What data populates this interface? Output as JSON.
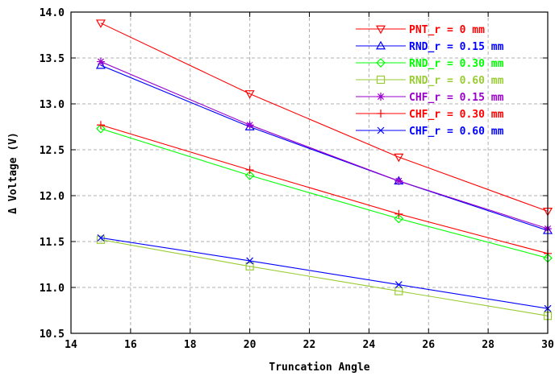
{
  "chart_data": {
    "type": "line",
    "title": "",
    "xlabel": "Truncation Angle",
    "ylabel": "Δ Voltage (V)",
    "xlim": [
      14,
      30
    ],
    "ylim": [
      10.5,
      14.0
    ],
    "xticks": [
      14,
      16,
      18,
      20,
      22,
      24,
      26,
      28,
      30
    ],
    "yticks": [
      10.5,
      11.0,
      11.5,
      12.0,
      12.5,
      13.0,
      13.5,
      14.0
    ],
    "xtick_labels": [
      "14",
      "16",
      "18",
      "20",
      "22",
      "24",
      "26",
      "28",
      "30"
    ],
    "ytick_labels": [
      "10.5",
      "11.0",
      "11.5",
      "12.0",
      "12.5",
      "13.0",
      "13.5",
      "14.0"
    ],
    "grid": true,
    "legend_position": "top-right",
    "x": [
      15,
      20,
      25,
      30
    ],
    "series": [
      {
        "name": "PNT_r = 0 mm",
        "values": [
          13.88,
          13.11,
          12.42,
          11.83
        ],
        "color": "#ff0000",
        "marker": "triangle-down"
      },
      {
        "name": "RND_r = 0.15 mm",
        "values": [
          13.42,
          12.75,
          12.16,
          11.62
        ],
        "color": "#0000ff",
        "marker": "triangle-up"
      },
      {
        "name": "RND_r = 0.30 mm",
        "values": [
          12.73,
          12.22,
          11.75,
          11.32
        ],
        "color": "#00ff00",
        "marker": "diamond"
      },
      {
        "name": "RND_r = 0.60 mm",
        "values": [
          11.52,
          11.23,
          10.96,
          10.69
        ],
        "color": "#99cc33",
        "marker": "square"
      },
      {
        "name": "CHF_r = 0.15 mm",
        "values": [
          13.46,
          12.77,
          12.16,
          11.64
        ],
        "color": "#9900cc",
        "marker": "star"
      },
      {
        "name": "CHF_r = 0.30 mm",
        "values": [
          12.77,
          12.28,
          11.8,
          11.37
        ],
        "color": "#ff0000",
        "marker": "plus"
      },
      {
        "name": "CHF_r = 0.60 mm",
        "values": [
          11.54,
          11.29,
          11.03,
          10.77
        ],
        "color": "#0000ff",
        "marker": "cross"
      }
    ]
  }
}
